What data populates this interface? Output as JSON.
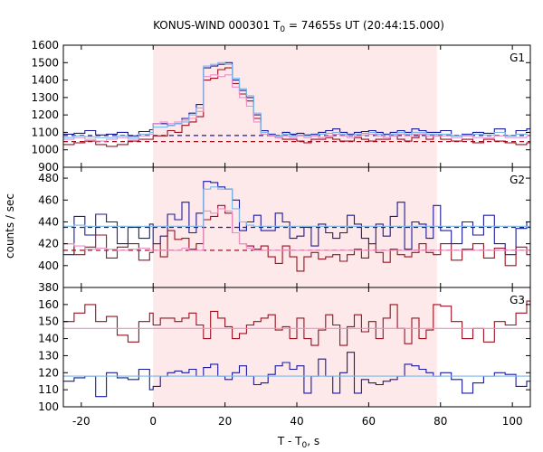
{
  "title": {
    "prefix": "KONUS-WIND 000301 T",
    "sub": "0",
    "suffix": " = 74655s UT (20:44:15.000)"
  },
  "xlabel": {
    "prefix": "T - T",
    "sub": "0",
    "suffix": ", s"
  },
  "ylabel": "counts / sec",
  "chart_data": {
    "type": "line",
    "style": "step",
    "x_range": [
      -25,
      105
    ],
    "x_ticks": [
      -20,
      0,
      20,
      40,
      60,
      80,
      100
    ],
    "x_tick_labels": [
      "-20",
      "0",
      "20",
      "40",
      "60",
      "80",
      "100"
    ],
    "highlight_interval": [
      0,
      79
    ],
    "highlight_color": "#fde8ea",
    "bin_edges": [
      -25,
      -22,
      -19,
      -16,
      -13,
      -10,
      -7,
      -4,
      -1,
      0,
      2,
      4,
      6,
      8,
      10,
      12,
      14,
      16,
      18,
      20,
      22,
      24,
      26,
      28,
      30,
      32,
      34,
      36,
      38,
      40,
      42,
      44,
      46,
      48,
      50,
      52,
      54,
      56,
      58,
      60,
      62,
      64,
      66,
      68,
      70,
      72,
      74,
      76,
      78,
      80,
      83,
      86,
      89,
      92,
      95,
      98,
      101,
      104,
      105
    ],
    "panels": [
      {
        "label": "G1",
        "ylim": [
          900,
          1600
        ],
        "yticks": [
          900,
          1000,
          1100,
          1200,
          1300,
          1400,
          1500,
          1600
        ],
        "ytick_labels": [
          "900",
          "1000",
          "1100",
          "1200",
          "1300",
          "1400",
          "1500",
          "1600"
        ],
        "series": [
          {
            "color": "#1a1aa0",
            "values": [
              1090,
              1095,
              1110,
              1085,
              1090,
              1100,
              1080,
              1105,
              1115,
              1150,
              1150,
              1140,
              1150,
              1180,
              1210,
              1260,
              1470,
              1480,
              1490,
              1500,
              1400,
              1340,
              1300,
              1200,
              1110,
              1090,
              1080,
              1100,
              1090,
              1095,
              1085,
              1090,
              1100,
              1110,
              1120,
              1100,
              1090,
              1100,
              1105,
              1110,
              1100,
              1090,
              1100,
              1110,
              1100,
              1120,
              1110,
              1100,
              1100,
              1110,
              1080,
              1090,
              1100,
              1095,
              1120,
              1080,
              1110,
              1120
            ]
          },
          {
            "color": "#9a1020",
            "values": [
              1030,
              1040,
              1050,
              1030,
              1020,
              1030,
              1050,
              1060,
              1060,
              1080,
              1080,
              1110,
              1100,
              1140,
              1160,
              1190,
              1400,
              1410,
              1460,
              1470,
              1380,
              1320,
              1280,
              1180,
              1100,
              1080,
              1070,
              1060,
              1060,
              1050,
              1040,
              1060,
              1060,
              1070,
              1060,
              1050,
              1050,
              1070,
              1060,
              1050,
              1060,
              1060,
              1080,
              1060,
              1050,
              1070,
              1090,
              1060,
              1080,
              1060,
              1050,
              1060,
              1040,
              1060,
              1050,
              1040,
              1030,
              1040
            ]
          },
          {
            "color": "#e890c8",
            "values": [
              1060,
              1070,
              1060,
              1050,
              1060,
              1070,
              1060,
              1080,
              1090,
              1150,
              1160,
              1150,
              1160,
              1170,
              1180,
              1220,
              1420,
              1430,
              1420,
              1430,
              1360,
              1300,
              1250,
              1160,
              1090,
              1080,
              1070,
              1080,
              1070,
              1080,
              1070,
              1080,
              1070,
              1080,
              1090,
              1080,
              1070,
              1080,
              1085,
              1090,
              1080,
              1070,
              1080,
              1090,
              1080,
              1090,
              1090,
              1080,
              1080,
              1080,
              1070,
              1080,
              1070,
              1070,
              1080,
              1070,
              1070,
              1080
            ]
          },
          {
            "color": "#7ab8e8",
            "values": [
              1070,
              1080,
              1075,
              1070,
              1070,
              1080,
              1070,
              1090,
              1100,
              1130,
              1130,
              1140,
              1150,
              1160,
              1200,
              1240,
              1480,
              1490,
              1500,
              1490,
              1410,
              1350,
              1310,
              1210,
              1100,
              1085,
              1080,
              1090,
              1080,
              1085,
              1080,
              1085,
              1090,
              1095,
              1100,
              1090,
              1085,
              1090,
              1095,
              1100,
              1090,
              1085,
              1090,
              1100,
              1090,
              1100,
              1100,
              1090,
              1090,
              1090,
              1080,
              1085,
              1090,
              1085,
              1100,
              1080,
              1090,
              1100
            ]
          }
        ],
        "backgrounds": [
          {
            "color": "#1a1aa0",
            "value": 1082,
            "dashed": true
          },
          {
            "color": "#9a1020",
            "value": 1047,
            "dashed": true
          }
        ]
      },
      {
        "label": "G2",
        "ylim": [
          380,
          490
        ],
        "yticks": [
          380,
          400,
          420,
          440,
          460,
          480
        ],
        "ytick_labels": [
          "380",
          "400",
          "420",
          "440",
          "460",
          "480"
        ],
        "series": [
          {
            "color": "#1a1aa0",
            "values": [
              410,
              445,
              428,
              447,
              440,
              420,
              435,
              425,
              438,
              420,
              427,
              447,
              442,
              458,
              430,
              448,
              477,
              476,
              472,
              470,
              460,
              432,
              440,
              446,
              432,
              432,
              448,
              440,
              425,
              427,
              435,
              418,
              438,
              430,
              425,
              430,
              446,
              438,
              425,
              420,
              438,
              427,
              445,
              458,
              415,
              440,
              438,
              425,
              455,
              432,
              420,
              440,
              428,
              446,
              420,
              410,
              434,
              440
            ]
          },
          {
            "color": "#9a1020",
            "values": [
              420,
              410,
              417,
              428,
              407,
              417,
              420,
              405,
              412,
              420,
              408,
              432,
              424,
              425,
              415,
              420,
              442,
              445,
              455,
              448,
              430,
              420,
              418,
              415,
              418,
              408,
              402,
              418,
              408,
              395,
              408,
              412,
              406,
              408,
              410,
              404,
              410,
              415,
              407,
              420,
              412,
              403,
              415,
              410,
              408,
              412,
              420,
              412,
              410,
              420,
              405,
              415,
              420,
              407,
              416,
              400,
              417,
              410
            ]
          },
          {
            "color": "#e890c8",
            "values": [
              420,
              418,
              415,
              416,
              415,
              414,
              415,
              416,
              414,
              414,
              414,
              414,
              414,
              416,
              414,
              414,
              450,
              448,
              452,
              450,
              430,
              420,
              416,
              414,
              414,
              414,
              414,
              414,
              414,
              414,
              414,
              414,
              414,
              414,
              414,
              414,
              414,
              414,
              414,
              414,
              414,
              414,
              414,
              414,
              414,
              414,
              414,
              414,
              414,
              414,
              414,
              414,
              414,
              414,
              414,
              414,
              414,
              414
            ]
          },
          {
            "color": "#7ab8e8",
            "values": [
              436,
              437,
              436,
              436,
              436,
              436,
              436,
              436,
              436,
              436,
              436,
              436,
              436,
              436,
              436,
              436,
              470,
              472,
              470,
              470,
              452,
              440,
              437,
              436,
              436,
              436,
              436,
              436,
              436,
              436,
              436,
              436,
              436,
              436,
              436,
              436,
              436,
              436,
              436,
              436,
              436,
              436,
              436,
              436,
              436,
              436,
              436,
              436,
              436,
              436,
              436,
              436,
              436,
              436,
              436,
              436,
              436,
              436
            ]
          }
        ],
        "backgrounds": [
          {
            "color": "#1a1aa0",
            "value": 435,
            "dashed": true
          },
          {
            "color": "#9a1020",
            "value": 414,
            "dashed": true
          }
        ]
      },
      {
        "label": "G3",
        "ylim": [
          100,
          170
        ],
        "yticks": [
          100,
          110,
          120,
          130,
          140,
          150,
          160
        ],
        "ytick_labels": [
          "100",
          "110",
          "120",
          "130",
          "140",
          "150",
          "160"
        ],
        "series": [
          {
            "color": "#9a1020",
            "values": [
              150,
              155,
              160,
              150,
              153,
              142,
              138,
              150,
              155,
              148,
              152,
              152,
              150,
              152,
              155,
              148,
              140,
              156,
              152,
              147,
              140,
              143,
              148,
              150,
              152,
              154,
              145,
              147,
              140,
              152,
              140,
              136,
              145,
              154,
              148,
              136,
              147,
              154,
              144,
              150,
              140,
              152,
              160,
              146,
              137,
              152,
              140,
              145,
              160,
              159,
              150,
              140,
              146,
              138,
              150,
              148,
              155,
              162
            ]
          },
          {
            "color": "#1a1aa0",
            "values": [
              115,
              117,
              118,
              106,
              120,
              117,
              116,
              122,
              110,
              112,
              118,
              120,
              121,
              120,
              122,
              118,
              123,
              125,
              118,
              116,
              120,
              124,
              118,
              113,
              114,
              119,
              124,
              126,
              122,
              124,
              108,
              118,
              128,
              118,
              108,
              120,
              132,
              108,
              116,
              114,
              113,
              115,
              116,
              118,
              125,
              124,
              122,
              120,
              118,
              120,
              116,
              108,
              114,
              118,
              120,
              119,
              112,
              115
            ]
          },
          {
            "color": "#e890c8",
            "values": [
              146,
              146,
              146,
              146,
              146,
              146,
              146,
              146,
              146,
              146,
              146,
              146,
              146,
              146,
              146,
              146,
              146,
              146,
              146,
              146,
              146,
              146,
              146,
              146,
              146,
              146,
              146,
              146,
              146,
              146,
              146,
              146,
              146,
              146,
              146,
              146,
              146,
              146,
              146,
              146,
              146,
              146,
              146,
              146,
              146,
              146,
              146,
              146,
              146,
              146,
              146,
              146,
              146,
              146,
              146,
              146,
              146,
              146
            ]
          },
          {
            "color": "#7ab8e8",
            "values": [
              118,
              118,
              118,
              118,
              118,
              118,
              118,
              118,
              118,
              118,
              118,
              118,
              118,
              118,
              118,
              118,
              118,
              118,
              118,
              118,
              118,
              118,
              118,
              118,
              118,
              118,
              118,
              118,
              118,
              118,
              118,
              118,
              118,
              118,
              118,
              118,
              118,
              118,
              118,
              118,
              118,
              118,
              118,
              118,
              118,
              118,
              118,
              118,
              118,
              118,
              118,
              118,
              118,
              118,
              118,
              118,
              118,
              118
            ]
          }
        ],
        "backgrounds": []
      }
    ]
  }
}
